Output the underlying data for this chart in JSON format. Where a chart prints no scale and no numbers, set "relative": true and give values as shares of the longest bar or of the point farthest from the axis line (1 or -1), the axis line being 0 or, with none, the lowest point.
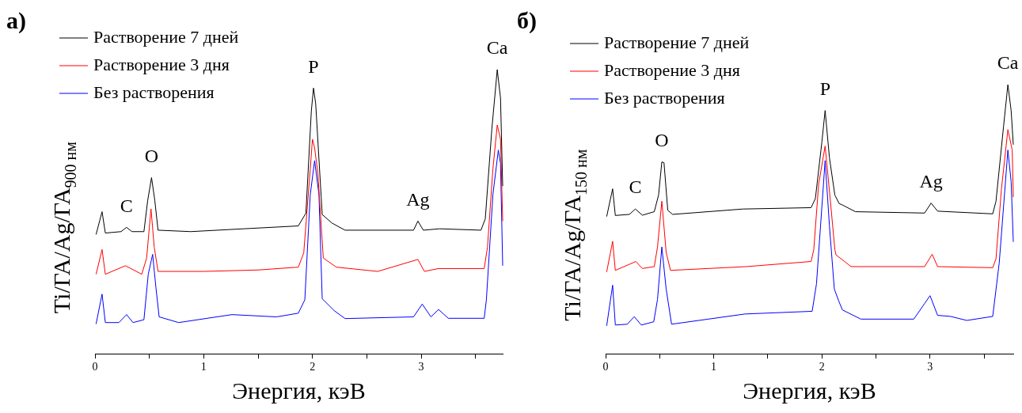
{
  "chart_data": [
    {
      "type": "line",
      "title": "а)",
      "xlabel": "Энергия, кэВ",
      "ylabel": "Ti/ГА/Ag/ГА$_{900 нм}$",
      "relative": true,
      "legend": "top left",
      "xlim": [
        0,
        3.75
      ],
      "xticks": [
        0,
        {
          "value": 0.5,
          "label": null
        },
        1,
        {
          "value": 1.5,
          "label": null
        },
        2,
        {
          "value": 2.5,
          "label": null
        },
        3,
        {
          "value": 3.5,
          "label": null
        }
      ],
      "annotations": [
        {
          "text": "C",
          "x": 0.29,
          "y": 0.445
        },
        {
          "text": "O",
          "x": 0.52,
          "y": 0.62
        },
        {
          "text": "P",
          "x": 2.01,
          "y": 0.935
        },
        {
          "text": "Ag",
          "x": 2.97,
          "y": 0.467
        },
        {
          "text": "Ca",
          "x": 3.7,
          "y": 1
        }
      ],
      "series": [
        {
          "name": "Растворение 7 дней",
          "color": "#000000",
          "x": [
            0.01,
            0.065,
            0.095,
            0.24,
            0.29,
            0.34,
            0.45,
            0.485,
            0.52,
            0.55,
            0.58,
            0.88,
            1.37,
            1.87,
            1.94,
            1.99,
            2.01,
            2.03,
            2.09,
            2.18,
            2.3,
            2.93,
            2.97,
            3.02,
            3.17,
            3.55,
            3.59,
            3.65,
            3.7,
            3.73,
            3.75
          ],
          "values": [
            0.42,
            0.5,
            0.425,
            0.43,
            0.445,
            0.43,
            0.43,
            0.54,
            0.62,
            0.54,
            0.435,
            0.43,
            0.44,
            0.45,
            0.495,
            0.855,
            0.935,
            0.88,
            0.49,
            0.46,
            0.435,
            0.435,
            0.467,
            0.435,
            0.44,
            0.435,
            0.475,
            0.79,
            1,
            0.9,
            0.59
          ]
        },
        {
          "name": "Растворение 3 дня",
          "color": "#ff0000",
          "x": [
            0.01,
            0.065,
            0.095,
            0.28,
            0.43,
            0.475,
            0.515,
            0.545,
            0.58,
            1.0,
            1.5,
            1.87,
            1.92,
            1.98,
            2.0,
            2.02,
            2.05,
            2.1,
            2.22,
            2.6,
            2.97,
            3.03,
            3.16,
            3.58,
            3.61,
            3.66,
            3.7,
            3.73,
            3.75
          ],
          "values": [
            0.28,
            0.367,
            0.28,
            0.31,
            0.28,
            0.337,
            0.51,
            0.375,
            0.29,
            0.29,
            0.295,
            0.305,
            0.355,
            0.65,
            0.755,
            0.725,
            0.635,
            0.337,
            0.305,
            0.29,
            0.332,
            0.29,
            0.3,
            0.3,
            0.375,
            0.65,
            0.805,
            0.755,
            0.467
          ]
        },
        {
          "name": "Без растворения",
          "color": "#0000ff",
          "x": [
            0.01,
            0.065,
            0.095,
            0.22,
            0.29,
            0.35,
            0.45,
            0.49,
            0.53,
            0.56,
            0.59,
            0.77,
            1.26,
            1.67,
            1.87,
            1.93,
            1.98,
            2.02,
            2.06,
            2.09,
            2.2,
            2.3,
            2.93,
            3.01,
            3.09,
            3.16,
            3.25,
            3.58,
            3.6,
            3.66,
            3.71,
            3.73,
            3.75
          ],
          "values": [
            0.105,
            0.21,
            0.11,
            0.11,
            0.138,
            0.11,
            0.12,
            0.28,
            0.35,
            0.235,
            0.13,
            0.11,
            0.138,
            0.13,
            0.143,
            0.19,
            0.56,
            0.68,
            0.56,
            0.194,
            0.152,
            0.124,
            0.13,
            0.175,
            0.13,
            0.156,
            0.125,
            0.125,
            0.19,
            0.56,
            0.717,
            0.67,
            0.31
          ]
        }
      ]
    },
    {
      "type": "line",
      "title": "б)",
      "xlabel": "Энергия, кэВ",
      "ylabel": "Ti/ГА/Ag/ГА$_{150 нм}$",
      "relative": true,
      "legend": "top left",
      "xlim": [
        0,
        3.77
      ],
      "xticks": [
        0,
        {
          "value": 0.5,
          "label": null
        },
        1,
        {
          "value": 1.5,
          "label": null
        },
        2,
        {
          "value": 2.5,
          "label": null
        },
        3,
        {
          "value": 3.5,
          "label": null
        }
      ],
      "annotations": [
        {
          "text": "C",
          "x": 0.275,
          "y": 0.538
        },
        {
          "text": "O",
          "x": 0.52,
          "y": 0.713
        },
        {
          "text": "P",
          "x": 2.03,
          "y": 0.904
        },
        {
          "text": "Ag",
          "x": 3.01,
          "y": 0.56
        },
        {
          "text": "Ca",
          "x": 3.72,
          "y": 1
        }
      ],
      "series": [
        {
          "name": "Растворение 7 дней",
          "color": "#000000",
          "x": [
            0.01,
            0.065,
            0.09,
            0.22,
            0.275,
            0.34,
            0.45,
            0.49,
            0.52,
            0.54,
            0.575,
            0.62,
            1.27,
            1.9,
            1.94,
            2.0,
            2.03,
            2.07,
            2.12,
            2.16,
            2.19,
            2.31,
            2.95,
            3.01,
            3.07,
            3.58,
            3.61,
            3.68,
            3.72,
            3.75,
            3.77
          ],
          "values": [
            0.51,
            0.613,
            0.514,
            0.518,
            0.538,
            0.515,
            0.528,
            0.59,
            0.713,
            0.71,
            0.533,
            0.518,
            0.538,
            0.543,
            0.577,
            0.787,
            0.904,
            0.728,
            0.59,
            0.558,
            0.553,
            0.528,
            0.523,
            0.56,
            0.53,
            0.52,
            0.567,
            0.845,
            1,
            0.904,
            0.777
          ]
        },
        {
          "name": "Растворение 3 дня",
          "color": "#ff0000",
          "x": [
            0.01,
            0.065,
            0.09,
            0.28,
            0.34,
            0.45,
            0.48,
            0.52,
            0.56,
            0.6,
            1.3,
            1.9,
            1.925,
            1.97,
            2.03,
            2.08,
            2.12,
            2.13,
            2.27,
            2.95,
            3.02,
            3.07,
            3.58,
            3.61,
            3.66,
            3.72,
            3.76,
            3.77
          ],
          "values": [
            0.304,
            0.418,
            0.31,
            0.343,
            0.317,
            0.324,
            0.397,
            0.567,
            0.377,
            0.31,
            0.324,
            0.343,
            0.387,
            0.63,
            0.772,
            0.562,
            0.387,
            0.368,
            0.324,
            0.324,
            0.37,
            0.324,
            0.32,
            0.353,
            0.611,
            0.833,
            0.757,
            0.582
          ]
        },
        {
          "name": "Без растворения",
          "color": "#0000ff",
          "x": [
            0.01,
            0.065,
            0.09,
            0.2,
            0.265,
            0.33,
            0.445,
            0.48,
            0.52,
            0.56,
            0.61,
            0.95,
            1.29,
            1.91,
            1.95,
            2.03,
            2.07,
            2.115,
            2.155,
            2.19,
            2.36,
            2.85,
            2.95,
            3.0,
            3.07,
            3.19,
            3.34,
            3.58,
            3.64,
            3.72,
            3.75,
            3.77
          ],
          "values": [
            0.104,
            0.255,
            0.107,
            0.11,
            0.138,
            0.107,
            0.119,
            0.202,
            0.397,
            0.241,
            0.11,
            0.129,
            0.148,
            0.158,
            0.26,
            0.718,
            0.475,
            0.241,
            0.197,
            0.163,
            0.129,
            0.129,
            0.187,
            0.216,
            0.143,
            0.139,
            0.124,
            0.139,
            0.338,
            0.757,
            0.64,
            0.416
          ]
        }
      ]
    }
  ]
}
